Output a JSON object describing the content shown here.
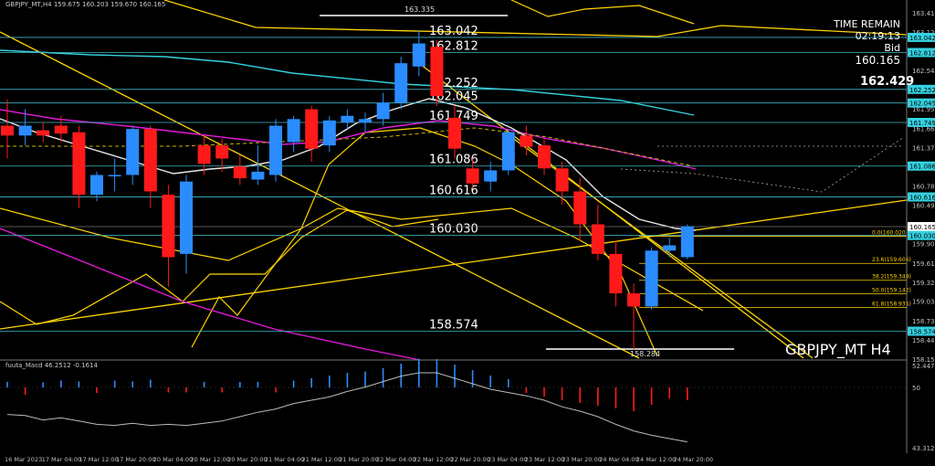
{
  "header": {
    "main": "GBPJPY_MT,H4  159.675 160.203 159.670 160.165",
    "macd": "fuuta_Macd 46.2512  -0.1614"
  },
  "info": {
    "time_remain_label": "TIME REMAIN",
    "time_remain_value": "02:19:13",
    "bid_label": "Bid",
    "bid_value": "160.165",
    "big_price": "162.429",
    "symbol": "GBPJPY_MT H4"
  },
  "colors": {
    "bg": "#000000",
    "bull": "#2a8cff",
    "bear": "#ff1a1a",
    "yellow": "#ffd400",
    "cyan": "#35d1e0",
    "magenta": "#e11ad9",
    "white": "#ffffff",
    "axis": "#c0c0c0"
  },
  "chart_data": {
    "type": "candlestick",
    "ylim": [
      158.15,
      163.5
    ],
    "y_ticks": [
      "163.415",
      "163.125",
      "162.830",
      "162.540",
      "162.250",
      "161.955",
      "161.660",
      "161.370",
      "161.075",
      "160.780",
      "160.490",
      "160.195",
      "159.905",
      "159.610",
      "159.320",
      "159.030",
      "158.735",
      "158.445",
      "158.150"
    ],
    "x_labels": [
      "16 Mar 2023",
      "17 Mar 04:00",
      "17 Mar 12:00",
      "17 Mar 20:00",
      "20 Mar 04:00",
      "20 Mar 12:00",
      "20 Mar 20:00",
      "21 Mar 04:00",
      "21 Mar 12:00",
      "21 Mar 20:00",
      "22 Mar 04:00",
      "22 Mar 12:00",
      "22 Mar 20:00",
      "23 Mar 04:00",
      "23 Mar 12:00",
      "23 Mar 20:00",
      "24 Mar 04:00",
      "24 Mar 12:00",
      "24 Mar 20:00"
    ],
    "candles": [
      {
        "o": 161.7,
        "h": 162.1,
        "c": 161.55,
        "l": 161.2
      },
      {
        "o": 161.55,
        "h": 161.95,
        "c": 161.7,
        "l": 161.4
      },
      {
        "o": 161.63,
        "h": 161.75,
        "c": 161.55,
        "l": 161.45
      },
      {
        "o": 161.7,
        "h": 161.85,
        "c": 161.58,
        "l": 161.45
      },
      {
        "o": 161.6,
        "h": 161.7,
        "c": 160.65,
        "l": 160.45
      },
      {
        "o": 160.65,
        "h": 161.0,
        "c": 160.95,
        "l": 160.55
      },
      {
        "o": 160.95,
        "h": 161.2,
        "c": 160.95,
        "l": 160.7
      },
      {
        "o": 160.95,
        "h": 161.7,
        "c": 161.65,
        "l": 160.8
      },
      {
        "o": 161.65,
        "h": 161.7,
        "c": 160.7,
        "l": 160.45
      },
      {
        "o": 160.65,
        "h": 160.8,
        "c": 159.7,
        "l": 159.25
      },
      {
        "o": 159.75,
        "h": 160.95,
        "c": 160.85,
        "l": 159.45
      },
      {
        "o": 161.4,
        "h": 161.55,
        "c": 161.12,
        "l": 160.95
      },
      {
        "o": 161.4,
        "h": 161.5,
        "c": 161.2,
        "l": 161.0
      },
      {
        "o": 161.08,
        "h": 161.25,
        "c": 160.9,
        "l": 160.8
      },
      {
        "o": 160.88,
        "h": 161.4,
        "c": 161.0,
        "l": 160.8
      },
      {
        "o": 160.95,
        "h": 161.8,
        "c": 161.7,
        "l": 160.85
      },
      {
        "o": 161.45,
        "h": 161.85,
        "c": 161.8,
        "l": 161.3
      },
      {
        "o": 161.95,
        "h": 162.0,
        "c": 161.35,
        "l": 161.15
      },
      {
        "o": 161.4,
        "h": 161.85,
        "c": 161.78,
        "l": 161.3
      },
      {
        "o": 161.75,
        "h": 161.95,
        "c": 161.85,
        "l": 161.65
      },
      {
        "o": 161.75,
        "h": 161.9,
        "c": 161.8,
        "l": 161.6
      },
      {
        "o": 161.8,
        "h": 162.2,
        "c": 162.05,
        "l": 161.7
      },
      {
        "o": 162.05,
        "h": 162.75,
        "c": 162.65,
        "l": 161.95
      },
      {
        "o": 162.6,
        "h": 163.15,
        "c": 162.95,
        "l": 162.45
      },
      {
        "o": 162.9,
        "h": 163.0,
        "c": 162.15,
        "l": 162.0
      },
      {
        "o": 161.82,
        "h": 162.0,
        "c": 161.35,
        "l": 161.2
      },
      {
        "o": 161.05,
        "h": 161.2,
        "c": 160.82,
        "l": 160.75
      },
      {
        "o": 160.85,
        "h": 161.15,
        "c": 161.02,
        "l": 160.7
      },
      {
        "o": 161.02,
        "h": 161.65,
        "c": 161.6,
        "l": 160.95
      },
      {
        "o": 161.55,
        "h": 161.7,
        "c": 161.38,
        "l": 161.25
      },
      {
        "o": 161.4,
        "h": 161.5,
        "c": 161.05,
        "l": 160.95
      },
      {
        "o": 161.05,
        "h": 161.15,
        "c": 160.7,
        "l": 160.5
      },
      {
        "o": 160.7,
        "h": 160.9,
        "c": 160.2,
        "l": 159.95
      },
      {
        "o": 160.2,
        "h": 160.5,
        "c": 159.75,
        "l": 159.65
      },
      {
        "o": 159.75,
        "h": 159.95,
        "c": 159.15,
        "l": 158.95
      },
      {
        "o": 159.15,
        "h": 159.3,
        "c": 158.95,
        "l": 158.3
      },
      {
        "o": 158.95,
        "h": 159.85,
        "c": 159.8,
        "l": 158.9
      },
      {
        "o": 159.8,
        "h": 160.0,
        "c": 159.88,
        "l": 159.7
      },
      {
        "o": 159.7,
        "h": 160.2,
        "c": 160.17,
        "l": 159.67
      }
    ],
    "bid": 160.165,
    "levels": [
      {
        "value": 163.042,
        "label": "163.042"
      },
      {
        "value": 162.812,
        "label": "162.812"
      },
      {
        "value": 162.252,
        "label": "162.252"
      },
      {
        "value": 162.045,
        "label": "162.045"
      },
      {
        "value": 161.749,
        "label": "161.749"
      },
      {
        "value": 161.086,
        "label": "161.086"
      },
      {
        "value": 160.616,
        "label": "160.616"
      },
      {
        "value": 160.03,
        "label": "160.030"
      },
      {
        "value": 158.574,
        "label": "158.574"
      }
    ],
    "axis_boxes": [
      "163.042",
      "162.812",
      "162.252",
      "162.045",
      "161.749",
      "161.086",
      "160.616",
      "160.165",
      "160.030",
      "158.574"
    ],
    "high_mark": "163.335",
    "low_mark": "158.284",
    "fibo": [
      {
        "value": 160.02,
        "label": "0.0(160.020)"
      },
      {
        "value": 159.606,
        "label": "23.6(159.606)"
      },
      {
        "value": 159.349,
        "label": "38.2(159.349)"
      },
      {
        "value": 159.142,
        "label": "50.0(159.142)"
      },
      {
        "value": 158.935,
        "label": "61.8(158.935)"
      }
    ],
    "macd": {
      "ylim": [
        43.3127,
        52.4477
      ],
      "ticks": [
        "52.4477",
        "50",
        "43.3127"
      ],
      "hist": [
        1.2,
        -1.6,
        1.1,
        1.5,
        1.3,
        -1.2,
        1.5,
        1.3,
        1.7,
        -1.1,
        -1.1,
        1.2,
        -1.1,
        1.2,
        1.2,
        -1.1,
        1.5,
        2.0,
        2.6,
        3.2,
        3.5,
        4.2,
        5.2,
        6.3,
        6.2,
        5.0,
        3.8,
        2.6,
        1.8,
        -1.2,
        -2.0,
        -2.8,
        -3.4,
        -4.0,
        -4.6,
        -5.2,
        -3.8,
        -2.4,
        -2.8
      ],
      "signal": [
        -1.6,
        -1.8,
        -2.6,
        -2.2,
        -2.8,
        -3.4,
        -3.6,
        -3.2,
        -3.6,
        -3.4,
        -3.6,
        -3.2,
        -2.8,
        -2.0,
        -1.2,
        -0.6,
        0.4,
        1.0,
        1.6,
        2.6,
        3.4,
        4.4,
        5.4,
        6.0,
        6.0,
        5.0,
        4.0,
        3.0,
        2.4,
        1.8,
        1.0,
        -0.2,
        -1.0,
        -2.0,
        -3.4,
        -4.6,
        -5.4,
        -6.0,
        -6.6
      ]
    }
  }
}
